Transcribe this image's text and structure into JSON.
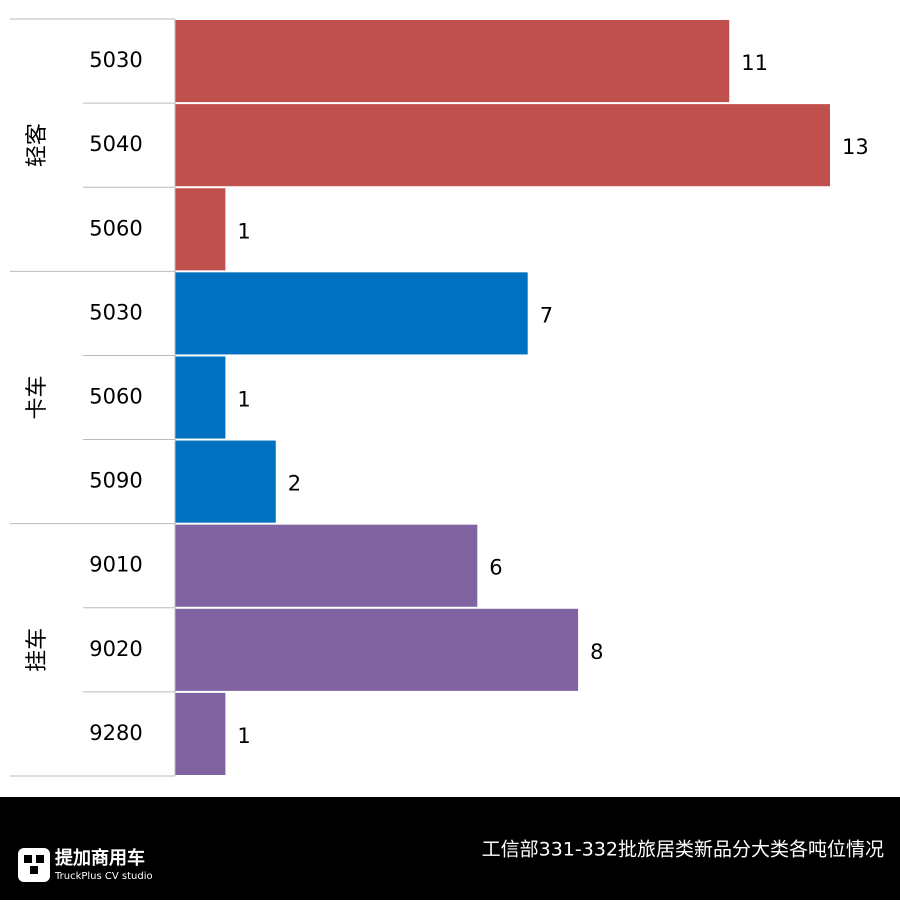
{
  "chart_data": {
    "type": "bar",
    "orientation": "horizontal",
    "title": "工信部331-332批旅居类新品分大类各吨位情况",
    "groups": [
      {
        "name": "轻客",
        "color": "#c0504d",
        "categories": [
          "5030",
          "5040",
          "5060"
        ],
        "values": [
          11,
          13,
          1
        ]
      },
      {
        "name": "卡车",
        "color": "#0070c0",
        "categories": [
          "5030",
          "5060",
          "5090"
        ],
        "values": [
          7,
          1,
          2
        ]
      },
      {
        "name": "挂车",
        "color": "#8064a2",
        "categories": [
          "9010",
          "9020",
          "9280"
        ],
        "values": [
          6,
          8,
          1
        ]
      }
    ]
  },
  "footer": {
    "brand": "提加商用车",
    "brand_sub": "TruckPlus CV studio"
  }
}
